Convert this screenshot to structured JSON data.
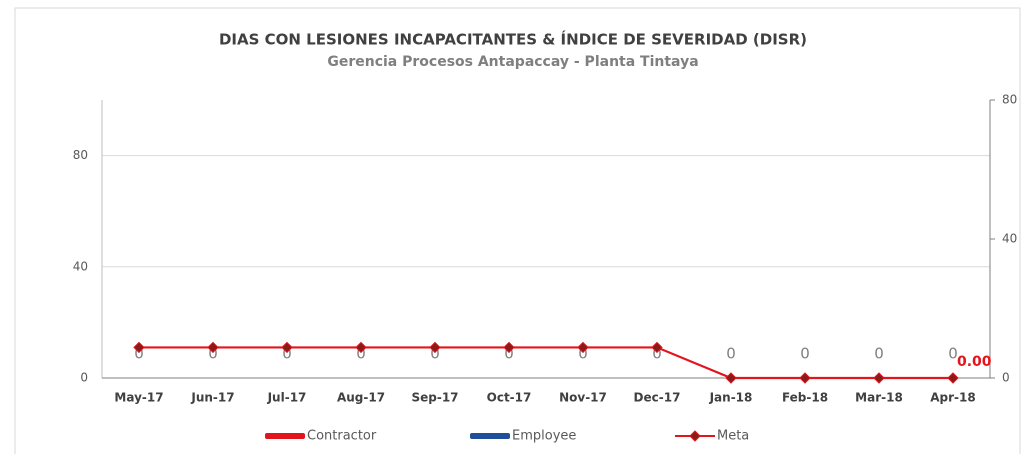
{
  "chart_data": {
    "type": "bar",
    "title": "DIAS CON LESIONES INCAPACITANTES & ÍNDICE DE SEVERIDAD (DISR)",
    "subtitle": "Gerencia Procesos Antapaccay - Planta Tintaya",
    "categories": [
      "May-17",
      "Jun-17",
      "Jul-17",
      "Aug-17",
      "Sep-17",
      "Oct-17",
      "Nov-17",
      "Dec-17",
      "Jan-18",
      "Feb-18",
      "Mar-18",
      "Apr-18"
    ],
    "ylim": [
      0,
      100
    ],
    "yticks": [
      0,
      40,
      80
    ],
    "y2lim": [
      0,
      80
    ],
    "y2ticks": [
      0,
      40,
      80
    ],
    "grid": true,
    "series": [
      {
        "name": "Contractor",
        "color": "#e3141b",
        "type": "bar",
        "values": [
          0,
          0,
          0,
          0,
          0,
          0,
          0,
          0,
          0,
          0,
          0,
          0
        ]
      },
      {
        "name": "Employee",
        "color": "#1f4e9a",
        "type": "bar",
        "values": [
          0,
          0,
          0,
          0,
          0,
          0,
          0,
          0,
          0,
          0,
          0,
          0
        ]
      },
      {
        "name": "Meta",
        "color": "#e3141b",
        "type": "line",
        "values": [
          11,
          11,
          11,
          11,
          11,
          11,
          11,
          11,
          0,
          0,
          0,
          0
        ],
        "value_labels": [
          null,
          null,
          null,
          null,
          null,
          null,
          null,
          null,
          null,
          null,
          null,
          "0.00"
        ]
      }
    ]
  }
}
